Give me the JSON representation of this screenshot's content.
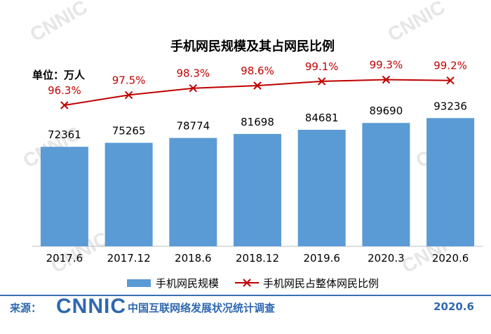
{
  "chart_data": {
    "type": "bar",
    "title": "手机网民规模及其占网民比例",
    "unit_label": "单位：万人",
    "categories": [
      "2017.6",
      "2017.12",
      "2018.6",
      "2018.12",
      "2019.6",
      "2020.3",
      "2020.6"
    ],
    "series": [
      {
        "name": "手机网民规模",
        "type": "bar",
        "values": [
          72361,
          75265,
          78774,
          81698,
          84681,
          89690,
          93236
        ],
        "labels": [
          "72361",
          "75265",
          "78774",
          "81698",
          "84681",
          "89690",
          "93236"
        ],
        "color": "#5b9bd5"
      },
      {
        "name": "手机网民占整体网民比例",
        "type": "line",
        "values": [
          96.3,
          97.5,
          98.3,
          98.6,
          99.1,
          99.3,
          99.2
        ],
        "labels": [
          "96.3%",
          "97.5%",
          "98.3%",
          "98.6%",
          "99.1%",
          "99.3%",
          "99.2%"
        ],
        "color": "#c00000"
      }
    ],
    "grid": false,
    "legend_position": "bottom"
  },
  "footer": {
    "source_label": "来源：",
    "logo_text": "CNNIC",
    "org": "中国互联网络发展状况统计调查",
    "date": "2020.6"
  }
}
